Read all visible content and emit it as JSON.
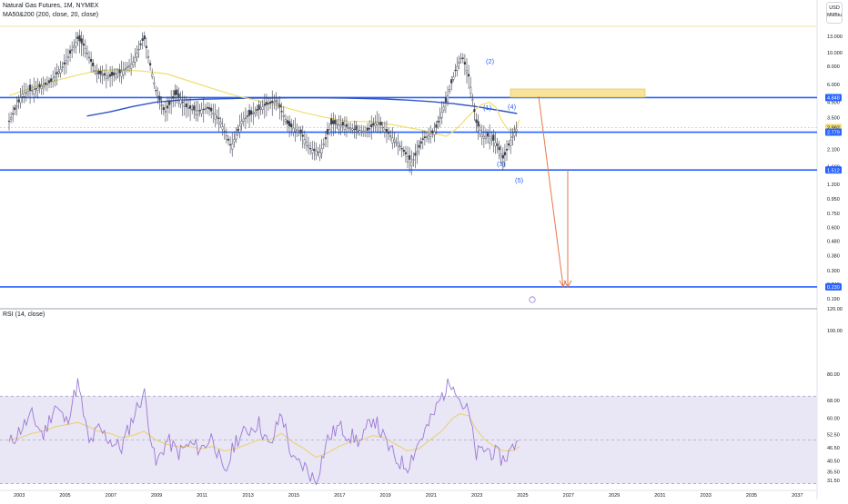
{
  "legend": {
    "symbol_line": "Natural Gas Futures, 1M, NYMEX",
    "indicator_line": "MA50&200 (200, close, 20, close)",
    "rsi_line": "RSI (14, close)"
  },
  "currency": {
    "code": "USD",
    "unit": "MMBtu"
  },
  "colors": {
    "background": "#ffffff",
    "rsi_band": "#e9e6f5",
    "rsi_line": "#9c7ad6",
    "rsi_ma": "#ead06a",
    "ma50": "#f0de6e",
    "ma200": "#2d55c8",
    "level_line": "#2962ff",
    "arrow": "#e47a4a",
    "box": "#f5e49a",
    "box_border": "#e8c65a",
    "candle": "#3a3f4b",
    "axis_text": "#131722",
    "last_price_label": "#f0de6e"
  },
  "chart_data": [
    {
      "type": "line",
      "name": "price",
      "scale": "log",
      "x_axis": [
        "2003",
        "2005",
        "2007",
        "2009",
        "2011",
        "2013",
        "2015",
        "2017",
        "2019",
        "2021",
        "2023",
        "2025",
        "2027",
        "2029",
        "2031",
        "2033",
        "2035",
        "2037"
      ],
      "y_ticks": [
        "13.000",
        "10.000",
        "8.000",
        "6.000",
        "4.500",
        "3.500",
        "2.700",
        "2.100",
        "1.600",
        "1.200",
        "0.950",
        "0.750",
        "0.600",
        "0.480",
        "0.380",
        "0.300",
        "0.240",
        "0.190",
        "120.00"
      ],
      "price_labels": [
        "4.848",
        "2.992",
        "2.779",
        "1.512",
        "0.230"
      ],
      "levels": [
        4.848,
        2.779,
        1.512,
        0.23
      ],
      "x": [
        2002.6,
        2003.2,
        2003.8,
        2004.4,
        2005.0,
        2005.6,
        2005.9,
        2006.4,
        2007.0,
        2007.5,
        2008.0,
        2008.5,
        2009.0,
        2009.4,
        2009.9,
        2010.3,
        2010.8,
        2011.3,
        2011.8,
        2012.3,
        2012.8,
        2013.3,
        2013.8,
        2014.3,
        2014.8,
        2015.3,
        2015.8,
        2016.2,
        2016.7,
        2017.2,
        2017.7,
        2018.2,
        2018.7,
        2019.2,
        2019.7,
        2020.2,
        2020.7,
        2021.2,
        2021.7,
        2022.1,
        2022.4,
        2022.7,
        2023.0,
        2023.3,
        2023.6,
        2023.9,
        2024.2,
        2024.5,
        2024.8
      ],
      "values": [
        3.3,
        5.2,
        5.6,
        6.2,
        8.2,
        12.5,
        11.0,
        7.2,
        6.8,
        7.3,
        8.5,
        12.8,
        5.5,
        3.8,
        5.2,
        4.2,
        3.9,
        4.1,
        3.4,
        2.2,
        3.4,
        3.8,
        4.3,
        4.6,
        3.1,
        2.8,
        2.1,
        2.0,
        3.2,
        3.1,
        2.9,
        2.8,
        3.3,
        2.7,
        2.2,
        1.7,
        2.5,
        2.8,
        4.6,
        7.5,
        9.5,
        6.7,
        3.3,
        2.6,
        2.6,
        2.3,
        1.8,
        2.4,
        2.992
      ],
      "ma50": [
        5.0,
        5.6,
        6.3,
        6.9,
        7.5,
        7.6,
        7.4,
        7.1,
        6.3,
        5.6,
        5.0,
        4.6,
        4.2,
        3.8,
        3.5,
        3.3,
        3.3,
        3.1,
        2.9,
        2.8,
        2.7,
        2.6,
        2.8,
        3.1,
        3.5,
        3.9,
        4.3,
        4.5,
        4.1,
        3.4,
        2.9,
        2.9,
        3.0,
        3.4
      ],
      "ma50_x": [
        2002.6,
        2003.5,
        2004.5,
        2005.5,
        2006.5,
        2007.5,
        2008.5,
        2009.5,
        2010.5,
        2011.5,
        2012.5,
        2013.5,
        2014.5,
        2015.5,
        2016.5,
        2017.5,
        2018.5,
        2019.5,
        2020.5,
        2020.9,
        2021.3,
        2021.7,
        2022.0,
        2022.3,
        2022.6,
        2022.9,
        2023.2,
        2023.6,
        2023.9,
        2024.1,
        2024.4,
        2024.6,
        2024.8,
        2024.9
      ],
      "ma200_x": [
        2006.0,
        2007.0,
        2008.0,
        2009.0,
        2010.0,
        2011.0,
        2012.0,
        2013.0,
        2014.0,
        2015.0,
        2016.0,
        2017.0,
        2018.0,
        2019.0,
        2020.0,
        2021.0,
        2022.0,
        2023.0,
        2024.0,
        2024.8
      ],
      "ma200": [
        3.6,
        3.85,
        4.2,
        4.5,
        4.65,
        4.72,
        4.76,
        4.8,
        4.82,
        4.83,
        4.83,
        4.82,
        4.78,
        4.74,
        4.66,
        4.55,
        4.4,
        4.2,
        3.95,
        3.75
      ],
      "annotations": [
        "(2)",
        "(1)",
        "(4)",
        "(3)",
        "(5)"
      ],
      "projection": {
        "to_value": 0.23
      }
    },
    {
      "type": "line",
      "name": "rsi",
      "y_ticks": [
        "100.00",
        "80.00",
        "68.00",
        "60.00",
        "52.50",
        "46.50",
        "40.50",
        "35.50",
        "31.50"
      ],
      "band": [
        30,
        70
      ],
      "x": [
        2002.6,
        2003.1,
        2003.6,
        2004.1,
        2004.6,
        2005.1,
        2005.6,
        2006.1,
        2006.5,
        2007.0,
        2007.5,
        2008.0,
        2008.5,
        2009.0,
        2009.5,
        2010.0,
        2010.5,
        2011.0,
        2011.5,
        2012.0,
        2012.5,
        2013.0,
        2013.5,
        2014.0,
        2014.5,
        2015.0,
        2015.5,
        2016.0,
        2016.5,
        2017.0,
        2017.5,
        2018.0,
        2018.5,
        2019.0,
        2019.5,
        2020.0,
        2020.5,
        2021.0,
        2021.5,
        2022.0,
        2022.3,
        2022.7,
        2023.0,
        2023.4,
        2023.8,
        2024.2,
        2024.6,
        2024.9
      ],
      "values": [
        48,
        55,
        61,
        52,
        66,
        58,
        76,
        48,
        55,
        50,
        46,
        60,
        72,
        38,
        50,
        44,
        48,
        46,
        52,
        33,
        50,
        54,
        58,
        46,
        63,
        40,
        38,
        31,
        50,
        56,
        52,
        49,
        61,
        50,
        41,
        38,
        49,
        58,
        70,
        78,
        68,
        62,
        43,
        46,
        44,
        41,
        46,
        53
      ],
      "ma": [
        50,
        51,
        53,
        54,
        56,
        57,
        58,
        56,
        54,
        53,
        51,
        52,
        54,
        50,
        48,
        47,
        47,
        46,
        47,
        45,
        46,
        48,
        50,
        50,
        53,
        49,
        46,
        42,
        44,
        47,
        49,
        50,
        52,
        51,
        48,
        45,
        46,
        50,
        54,
        60,
        62,
        61,
        55,
        50,
        47,
        45,
        45,
        47
      ]
    }
  ]
}
